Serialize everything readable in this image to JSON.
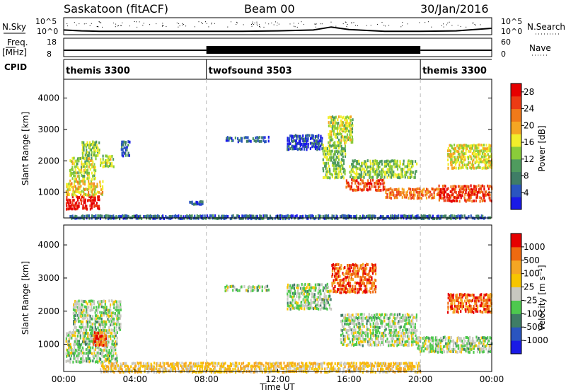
{
  "header": {
    "station": "Saskatoon (fitACF)",
    "beam": "Beam 00",
    "date": "30/Jan/2016"
  },
  "labels": {
    "nsky": "N.Sky",
    "nsearch": "N.Search",
    "freq": "Freq.",
    "freq_unit": "[MHz]",
    "nave": "Nave",
    "cpid": "CPID",
    "nsky_ticks": [
      "10^5",
      "10^0"
    ],
    "freq_ticks": [
      "18",
      "8"
    ],
    "nave_ticks": [
      "60",
      "0"
    ],
    "nsearch_ticks": [
      "10^5",
      "10^0"
    ]
  },
  "cpid_segments": [
    {
      "name": "themis 3300",
      "start": 0,
      "end": 8
    },
    {
      "name": "twofsound 3503",
      "start": 8,
      "end": 20
    },
    {
      "name": "themis 3300",
      "start": 20,
      "end": 24
    }
  ],
  "colors": {
    "power_scale": [
      "#1a1ae6",
      "#2a55c0",
      "#3f7d66",
      "#4f9b5e",
      "#8acc3a",
      "#f2ee2b",
      "#f5a623",
      "#f07a1a",
      "#ec3b14",
      "#e60000"
    ],
    "velocity_scale": [
      "#1a1ae6",
      "#2a55c0",
      "#3f7d66",
      "#4ec94e",
      "#c8c8c0",
      "#f7c500",
      "#f5a623",
      "#ef6a10",
      "#e60000"
    ]
  },
  "chart_data": [
    {
      "type": "line",
      "panel": "N.Sky / N.Search",
      "x": [
        0,
        1,
        2,
        3,
        4,
        6,
        8,
        10,
        12,
        14,
        15,
        16,
        18,
        20,
        22,
        24
      ],
      "values": [
        1.1,
        0.9,
        0.8,
        0.8,
        0.8,
        0.8,
        0.8,
        0.8,
        0.9,
        1.1,
        1.8,
        1.2,
        0.8,
        0.8,
        0.9,
        1.5
      ],
      "xlim": [
        0,
        24
      ]
    },
    {
      "type": "line",
      "panel": "Freq / Nave",
      "series": [
        {
          "name": "Freq.",
          "x": [
            0,
            8,
            8,
            20,
            20,
            24
          ],
          "values": [
            10.5,
            10.5,
            10.5,
            10.5,
            10.5,
            10.5
          ]
        },
        {
          "name": "Nave",
          "x": [
            0,
            24
          ],
          "values": [
            10,
            10
          ]
        }
      ]
    },
    {
      "type": "heatmap",
      "panel": "power",
      "xlabel": "",
      "ylabel": "Slant Range [km]",
      "xlim": [
        0,
        24
      ],
      "ylim": [
        180,
        4600
      ],
      "yticks": [
        1000,
        2000,
        3000,
        4000
      ],
      "colorbar": {
        "label": "Power [dB]",
        "ticks": [
          "4",
          "8",
          "12",
          "16",
          "20",
          "24",
          "28"
        ],
        "range": [
          0,
          30
        ]
      },
      "regions": [
        {
          "t0": 0.1,
          "t1": 2.0,
          "r0": 500,
          "r1": 950,
          "level": 0.95
        },
        {
          "t0": 0.1,
          "t1": 2.2,
          "r0": 950,
          "r1": 1450,
          "level": 0.6
        },
        {
          "t0": 0.3,
          "t1": 1.8,
          "r0": 1450,
          "r1": 2200,
          "level": 0.5
        },
        {
          "t0": 1.0,
          "t1": 2.0,
          "r0": 2200,
          "r1": 2700,
          "level": 0.45
        },
        {
          "t0": 2.0,
          "t1": 2.8,
          "r0": 1850,
          "r1": 2250,
          "level": 0.5
        },
        {
          "t0": 3.2,
          "t1": 3.7,
          "r0": 2200,
          "r1": 2700,
          "level": 0.2
        },
        {
          "t0": 7.0,
          "t1": 7.8,
          "r0": 650,
          "r1": 780,
          "level": 0.15
        },
        {
          "t0": 9.0,
          "t1": 11.5,
          "r0": 2650,
          "r1": 2850,
          "level": 0.2
        },
        {
          "t0": 12.5,
          "t1": 14.5,
          "r0": 2400,
          "r1": 2900,
          "level": 0.15
        },
        {
          "t0": 14.5,
          "t1": 15.8,
          "r0": 1500,
          "r1": 2600,
          "level": 0.45
        },
        {
          "t0": 14.8,
          "t1": 16.2,
          "r0": 2600,
          "r1": 3500,
          "level": 0.5
        },
        {
          "t0": 15.8,
          "t1": 18.0,
          "r0": 1100,
          "r1": 1500,
          "level": 0.85
        },
        {
          "t0": 16.0,
          "t1": 19.8,
          "r0": 1500,
          "r1": 2100,
          "level": 0.45
        },
        {
          "t0": 18.0,
          "t1": 21.0,
          "r0": 850,
          "r1": 1200,
          "level": 0.75
        },
        {
          "t0": 21.0,
          "t1": 24.0,
          "r0": 750,
          "r1": 1300,
          "level": 0.85
        },
        {
          "t0": 21.5,
          "t1": 24.0,
          "r0": 1800,
          "r1": 2600,
          "level": 0.55
        },
        {
          "t0": 0.3,
          "t1": 24.0,
          "r0": 200,
          "r1": 330,
          "level": 0.2
        }
      ]
    },
    {
      "type": "heatmap",
      "panel": "velocity",
      "xlabel": "Time UT",
      "ylabel": "Slant Range [km]",
      "xlim": [
        0,
        24
      ],
      "ylim": [
        180,
        4600
      ],
      "yticks": [
        1000,
        2000,
        3000,
        4000
      ],
      "xticks": [
        "00:00",
        "04:00",
        "08:00",
        "12:00",
        "16:00",
        "20:00",
        "00:00"
      ],
      "colorbar": {
        "label": "Velocity [m s⁻¹]",
        "ticks": [
          "1000",
          "500",
          "100",
          "25",
          "-25",
          "-100",
          "-500",
          "-1000"
        ]
      },
      "regions": [
        {
          "t0": 0.1,
          "t1": 3.0,
          "r0": 500,
          "r1": 1450,
          "level": 0.45
        },
        {
          "t0": 0.5,
          "t1": 3.2,
          "r0": 1450,
          "r1": 2400,
          "level": 0.45
        },
        {
          "t0": 1.6,
          "t1": 2.4,
          "r0": 1000,
          "r1": 1450,
          "level": 0.82
        },
        {
          "t0": 9.0,
          "t1": 11.5,
          "r0": 2650,
          "r1": 2850,
          "level": 0.45
        },
        {
          "t0": 12.5,
          "t1": 15.0,
          "r0": 2100,
          "r1": 2900,
          "level": 0.45
        },
        {
          "t0": 15.0,
          "t1": 17.5,
          "r0": 2600,
          "r1": 3500,
          "level": 0.85
        },
        {
          "t0": 15.5,
          "t1": 19.8,
          "r0": 1000,
          "r1": 2000,
          "level": 0.45
        },
        {
          "t0": 19.8,
          "t1": 24.0,
          "r0": 800,
          "r1": 1300,
          "level": 0.45
        },
        {
          "t0": 21.5,
          "t1": 24.0,
          "r0": 2000,
          "r1": 2600,
          "level": 0.85
        },
        {
          "t0": 2.0,
          "t1": 20.0,
          "r0": 200,
          "r1": 520,
          "level": 0.62
        }
      ]
    }
  ]
}
